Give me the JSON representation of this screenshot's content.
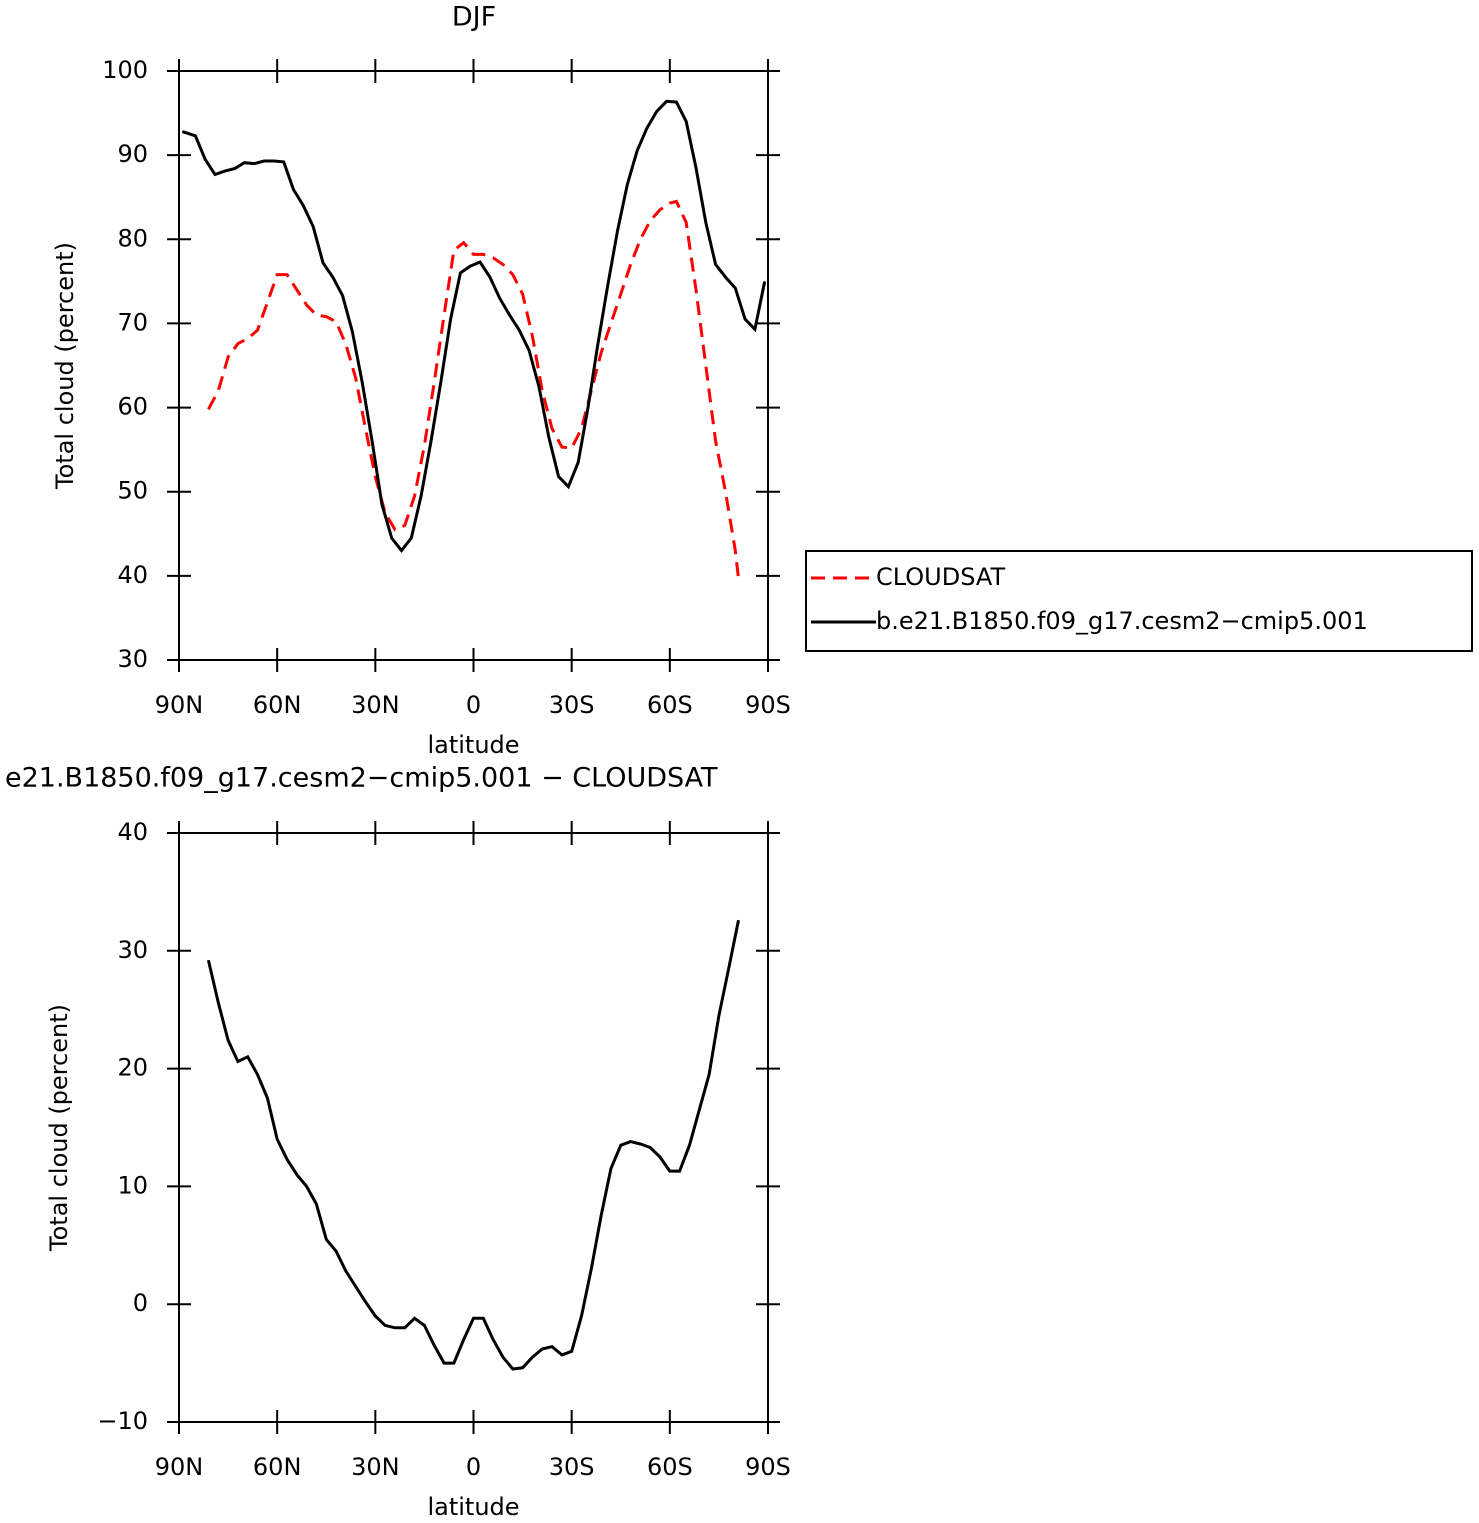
{
  "chart_data": [
    {
      "type": "line",
      "title": "DJF",
      "xlabel": "latitude",
      "ylabel": "Total cloud (percent)",
      "xlim": [
        90,
        -90
      ],
      "xticks": [
        {
          "value": 90,
          "label": "90N"
        },
        {
          "value": 60,
          "label": "60N"
        },
        {
          "value": 30,
          "label": "30N"
        },
        0,
        {
          "value": -30,
          "label": "30S"
        },
        {
          "value": -60,
          "label": "60S"
        },
        {
          "value": -90,
          "label": "90S"
        }
      ],
      "ylim": [
        30,
        100
      ],
      "yticks": [
        30,
        40,
        50,
        60,
        70,
        80,
        90,
        100
      ],
      "legend": "right",
      "series": [
        {
          "name": "CLOUDSAT",
          "color": "#ff0000",
          "dash": true,
          "x": [
            81,
            78,
            75,
            72,
            69,
            66,
            63,
            60,
            57,
            54,
            51,
            48,
            45,
            42,
            39,
            36,
            33,
            30,
            27,
            24,
            21,
            18,
            15,
            12,
            9,
            6,
            3,
            0,
            -3,
            -6,
            -9,
            -12,
            -15,
            -18,
            -21,
            -24,
            -27,
            -30,
            -33,
            -36,
            -39,
            -42,
            -45,
            -48,
            -51,
            -54,
            -57,
            -60,
            -62,
            -65,
            -68,
            -71,
            -74,
            -77,
            -80,
            -81
          ],
          "values": [
            59.8,
            62,
            66,
            67.6,
            68.2,
            69.2,
            72.5,
            75.8,
            75.8,
            74,
            72.2,
            71,
            70.8,
            70.2,
            67.5,
            63.5,
            57.5,
            51.8,
            47.5,
            45.5,
            46,
            49.5,
            55.5,
            63,
            71,
            78.7,
            79.6,
            78.2,
            78.2,
            77.8,
            77,
            75.8,
            73.5,
            68.5,
            62,
            57.5,
            55.3,
            55.2,
            57.5,
            62,
            66.5,
            70,
            73.5,
            77,
            80,
            82.2,
            83.5,
            84.3,
            84.5,
            82,
            74,
            65,
            56,
            50,
            43,
            39.7
          ]
        },
        {
          "name": "b.e21.B1850.f09_g17.cesm2−cmip5.001",
          "color": "#000000",
          "dash": false,
          "x": [
            89,
            85,
            82,
            79,
            76,
            73,
            70,
            67,
            64,
            61,
            58,
            55,
            52,
            49,
            46,
            43,
            40,
            37,
            34,
            31,
            28,
            25,
            22,
            19,
            16,
            13,
            10,
            7,
            4,
            1,
            -2,
            -5,
            -8,
            -11,
            -14,
            -17,
            -20,
            -23,
            -26,
            -29,
            -32,
            -35,
            -38,
            -41,
            -44,
            -47,
            -50,
            -53,
            -56,
            -59,
            -62,
            -65,
            -68,
            -71,
            -74,
            -77,
            -80,
            -83,
            -86,
            -89
          ],
          "values": [
            92.8,
            92.3,
            89.5,
            87.7,
            88.1,
            88.4,
            89.1,
            89.0,
            89.3,
            89.3,
            89.2,
            85.9,
            84.0,
            81.5,
            77.2,
            75.5,
            73.3,
            69,
            63,
            56,
            48.5,
            44.5,
            43.0,
            44.5,
            49.5,
            56,
            63,
            70.5,
            76,
            76.8,
            77.3,
            75.5,
            73,
            71,
            69.2,
            66.8,
            62.5,
            56.5,
            51.8,
            50.6,
            53.5,
            60,
            67.5,
            74.5,
            81,
            86.5,
            90.5,
            93.2,
            95.2,
            96.4,
            96.3,
            94,
            88.5,
            82,
            77,
            75.5,
            74.2,
            70.5,
            69.3,
            75.0
          ]
        }
      ]
    },
    {
      "type": "line",
      "title": "e21.B1850.f09_g17.cesm2−cmip5.001 − CLOUDSAT",
      "xlabel": "latitude",
      "ylabel": "Total cloud (percent)",
      "xlim": [
        90,
        -90
      ],
      "xticks": [
        {
          "value": 90,
          "label": "90N"
        },
        {
          "value": 60,
          "label": "60N"
        },
        {
          "value": 30,
          "label": "30N"
        },
        0,
        {
          "value": -30,
          "label": "30S"
        },
        {
          "value": -60,
          "label": "60S"
        },
        {
          "value": -90,
          "label": "90S"
        }
      ],
      "ylim": [
        -10,
        40
      ],
      "yticks": [
        {
          "value": -10,
          "label": "−10"
        },
        0,
        10,
        20,
        30,
        40
      ],
      "series": [
        {
          "color": "#000000",
          "dash": false,
          "x": [
            81,
            78,
            75,
            72,
            69,
            66,
            63,
            60,
            57,
            54,
            51,
            48,
            45,
            42,
            39,
            36,
            33,
            30,
            27,
            24,
            21,
            18,
            15,
            12,
            9,
            6,
            3,
            0,
            -3,
            -6,
            -9,
            -12,
            -15,
            -18,
            -21,
            -24,
            -27,
            -30,
            -33,
            -36,
            -39,
            -42,
            -45,
            -48,
            -51,
            -54,
            -57,
            -60,
            -63,
            -66,
            -69,
            -72,
            -75,
            -78,
            -81
          ],
          "values": [
            29.2,
            25.6,
            22.4,
            20.6,
            21.0,
            19.5,
            17.5,
            14.0,
            12.3,
            11.0,
            10.0,
            8.5,
            5.5,
            4.5,
            2.8,
            1.5,
            0.2,
            -1.0,
            -1.8,
            -2.0,
            -2.0,
            -1.2,
            -1.8,
            -3.5,
            -5.0,
            -5.0,
            -3.0,
            -1.2,
            -1.2,
            -3.0,
            -4.5,
            -5.5,
            -5.4,
            -4.5,
            -3.8,
            -3.6,
            -4.3,
            -4.0,
            -1.0,
            3.0,
            7.5,
            11.5,
            13.5,
            13.8,
            13.6,
            13.3,
            12.5,
            11.3,
            11.3,
            13.5,
            16.5,
            19.5,
            24.5,
            28.5,
            32.6
          ]
        }
      ]
    }
  ]
}
